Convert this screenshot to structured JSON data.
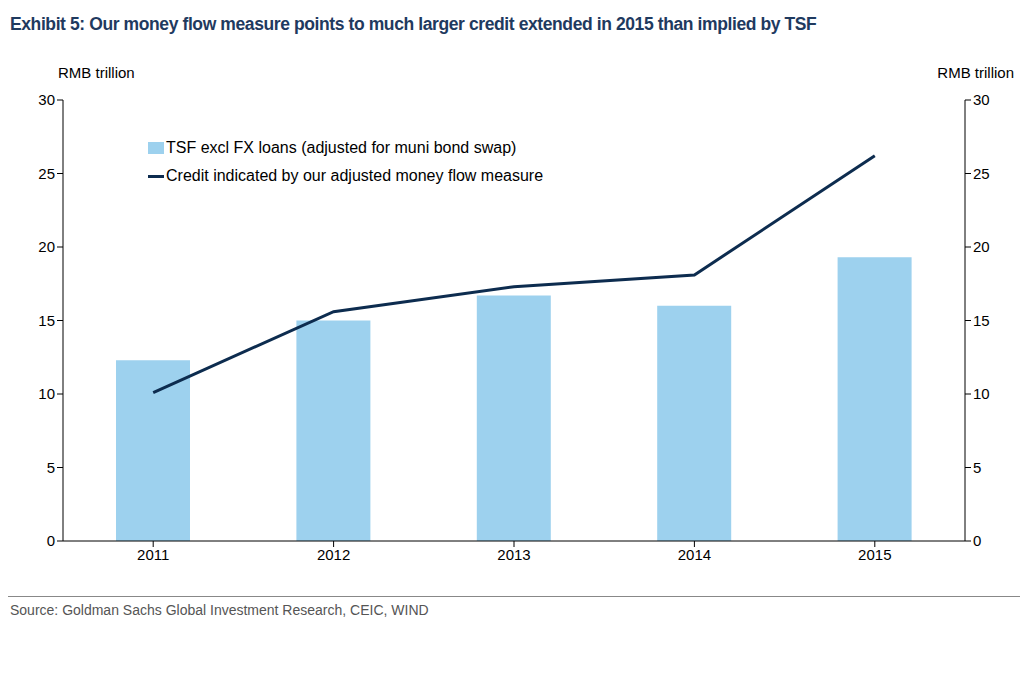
{
  "chart_data": {
    "type": "bar",
    "title": "Exhibit 5: Our money flow measure points to much larger credit extended in 2015 than implied by TSF",
    "y_label": "RMB trillion",
    "y2_label": "RMB trillion",
    "categories": [
      "2011",
      "2012",
      "2013",
      "2014",
      "2015"
    ],
    "series": [
      {
        "name": "TSF excl FX loans (adjusted for muni bond swap)",
        "type": "bar",
        "color": "#9DD1EE",
        "values": [
          12.3,
          15.0,
          16.7,
          16.0,
          19.3
        ]
      },
      {
        "name": "Credit indicated by our adjusted money flow measure",
        "type": "line",
        "color": "#0D2C4F",
        "axis": "y2",
        "values": [
          10.1,
          15.6,
          17.3,
          18.1,
          26.2
        ]
      }
    ],
    "ylim": [
      0,
      30
    ],
    "yticks": [
      0,
      5,
      10,
      15,
      20,
      25,
      30
    ],
    "y2lim": [
      0,
      30
    ],
    "y2ticks": [
      0,
      5,
      10,
      15,
      20,
      25,
      30
    ],
    "grid": false,
    "legend": "upper left",
    "source": "Source: Goldman Sachs Global Investment Research, CEIC, WIND"
  }
}
